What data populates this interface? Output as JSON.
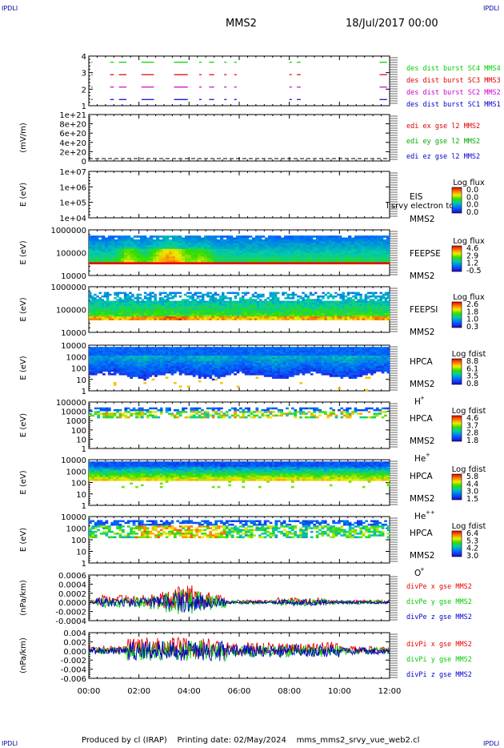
{
  "header": {
    "corner_label": "IPDLI",
    "mission": "MMS2",
    "date": "18/Jul/2017 00:00"
  },
  "footer": {
    "produced_by": "Produced by  cl (IRAP)",
    "printing_date": "Printing date: 02/May/2024",
    "filename": "mms_mms2_srvy_vue_web2.cl"
  },
  "x_axis": {
    "range_hours": [
      0,
      12
    ],
    "ticks": [
      "00:00",
      "02:00",
      "04:00",
      "06:00",
      "08:00",
      "10:00",
      "12:00"
    ]
  },
  "chart_data": [
    {
      "type": "timeline",
      "id": "burst",
      "ylabel": "",
      "ylim": [
        0.5,
        4.5
      ],
      "yticks": [
        "1",
        "2",
        "3",
        "4"
      ],
      "series": [
        {
          "name": "des dist burst SC1 MMS1",
          "color": "#0000cc",
          "y": 1
        },
        {
          "name": "des dist burst SC2 MMS2",
          "color": "#cc00cc",
          "y": 2
        },
        {
          "name": "des dist burst SC3 MMS3",
          "color": "#dd0000",
          "y": 3
        },
        {
          "name": "des dist burst SC4 MMS4",
          "color": "#00cc00",
          "y": 4
        }
      ],
      "segments_hours": [
        [
          0.1,
          0.15
        ],
        [
          0.85,
          1.0
        ],
        [
          1.2,
          1.5
        ],
        [
          2.1,
          2.6
        ],
        [
          3.4,
          3.95
        ],
        [
          4.4,
          4.5
        ],
        [
          4.8,
          5.0
        ],
        [
          5.4,
          5.5
        ],
        [
          5.8,
          5.9
        ],
        [
          8.0,
          8.1
        ],
        [
          8.3,
          8.45
        ],
        [
          11.6,
          11.9
        ]
      ]
    },
    {
      "type": "line",
      "id": "edi",
      "ylabel": "(mV/m)",
      "ylim": [
        0,
        1e+21
      ],
      "yticks": [
        "0",
        "2e+20",
        "4e+20",
        "6e+20",
        "8e+20",
        "1e+21"
      ],
      "series": [
        {
          "name": "edi ex gse l2 MMS2",
          "color": "#dd0000"
        },
        {
          "name": "edi ey gse l2 MMS2",
          "color": "#00aa00"
        },
        {
          "name": "edi ez gse l2 MMS2",
          "color": "#0000cc"
        }
      ],
      "values": 0
    },
    {
      "type": "heatmap",
      "id": "eis",
      "ylabel": "E (eV)",
      "yticks": [
        "1e+04",
        "1e+05",
        "1e+06",
        "1e+07"
      ],
      "instrument": "EIS",
      "overlay_text": "l srvy electron to",
      "spacecraft": "MMS2",
      "colorbar_title": "Log flux",
      "colorbar_ticks": [
        "0.0",
        "0.0",
        "0.0",
        "0.0"
      ],
      "data": "none"
    },
    {
      "type": "heatmap",
      "id": "feepse",
      "ylabel": "E (eV)",
      "yticks": [
        "10000",
        "100000",
        "1000000"
      ],
      "instrument": "FEEPSE",
      "spacecraft": "MMS2",
      "colorbar_title": "Log flux",
      "colorbar_ticks": [
        "4.6",
        "2.9",
        "1.2",
        "-0.5"
      ]
    },
    {
      "type": "heatmap",
      "id": "feepsi",
      "ylabel": "E (eV)",
      "yticks": [
        "10000",
        "100000",
        "1000000"
      ],
      "instrument": "FEEPSI",
      "spacecraft": "MMS2",
      "colorbar_title": "Log flux",
      "colorbar_ticks": [
        "2.6",
        "1.8",
        "1.0",
        "0.3"
      ]
    },
    {
      "type": "heatmap",
      "id": "hpca-h",
      "ylabel": "E (eV)",
      "yticks": [
        "1",
        "10",
        "100",
        "1000",
        "10000"
      ],
      "instrument": "HPCA",
      "spacecraft": "MMS2",
      "species": "H",
      "species_charge": "+",
      "colorbar_title": "Log fdist",
      "colorbar_ticks": [
        "8.8",
        "6.1",
        "3.5",
        "0.8"
      ]
    },
    {
      "type": "heatmap",
      "id": "hpca-he",
      "ylabel": "E (eV)",
      "yticks": [
        "1",
        "10",
        "100",
        "1000",
        "10000",
        "100000"
      ],
      "instrument": "HPCA",
      "spacecraft": "MMS2",
      "species": "He",
      "species_charge": "+",
      "colorbar_title": "Log fdist",
      "colorbar_ticks": [
        "4.6",
        "3.7",
        "2.8",
        "1.8"
      ]
    },
    {
      "type": "heatmap",
      "id": "hpca-he2",
      "ylabel": "E (eV)",
      "yticks": [
        "1",
        "10",
        "100",
        "1000",
        "10000"
      ],
      "instrument": "HPCA",
      "spacecraft": "MMS2",
      "species": "He",
      "species_charge": "++",
      "colorbar_title": "Log fdist",
      "colorbar_ticks": [
        "5.8",
        "4.4",
        "3.0",
        "1.5"
      ]
    },
    {
      "type": "heatmap",
      "id": "hpca-o",
      "ylabel": "E (eV)",
      "yticks": [
        "1",
        "10",
        "100",
        "1000",
        "10000"
      ],
      "instrument": "HPCA",
      "spacecraft": "MMS2",
      "species": "O",
      "species_charge": "+",
      "colorbar_title": "Log fdist",
      "colorbar_ticks": [
        "6.4",
        "5.3",
        "4.2",
        "3.0"
      ]
    },
    {
      "type": "line",
      "id": "divpe",
      "ylabel": "(nPa/km)",
      "ylim": [
        -0.0004,
        0.0006
      ],
      "yticks": [
        "-0.0004",
        "-0.0002",
        "0.0000",
        "0.0002",
        "0.0004",
        "0.0006"
      ],
      "series": [
        {
          "name": "divPe x gse MMS2",
          "color": "#ee0000"
        },
        {
          "name": "divPe y gse MMS2",
          "color": "#00cc00"
        },
        {
          "name": "divPe z gse MMS2",
          "color": "#0000cc"
        }
      ]
    },
    {
      "type": "line",
      "id": "divpi",
      "ylabel": "(nPa/km)",
      "ylim": [
        -0.006,
        0.004
      ],
      "yticks": [
        "-0.006",
        "-0.004",
        "-0.002",
        "0.000",
        "0.002",
        "0.004"
      ],
      "series": [
        {
          "name": "divPi x gse MMS2",
          "color": "#ee0000"
        },
        {
          "name": "divPi y gse MMS2",
          "color": "#00cc00"
        },
        {
          "name": "divPi z gse MMS2",
          "color": "#0000cc"
        }
      ]
    }
  ]
}
